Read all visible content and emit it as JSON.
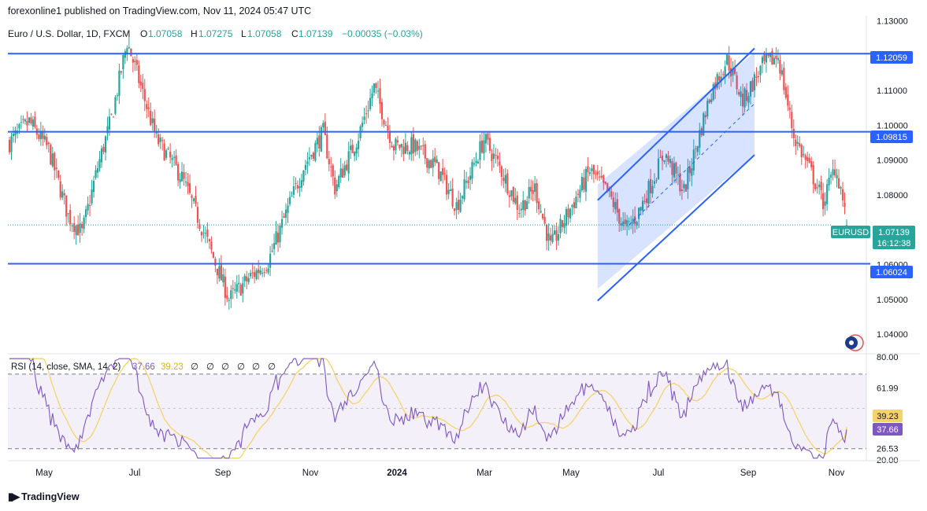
{
  "header": {
    "publisher": "forexonline1 published on TradingView.com, Nov 11, 2024 05:47 UTC"
  },
  "legend": {
    "symbol": "Euro / U.S. Dollar, 1D, FXCM",
    "o_label": "O",
    "o": "1.07058",
    "h_label": "H",
    "h": "1.07275",
    "l_label": "L",
    "l": "1.07058",
    "c_label": "C",
    "c": "1.07139",
    "change": "−0.00035 (−0.03%)"
  },
  "price_badges": {
    "level_high": "1.12059",
    "level_mid": "1.09815",
    "level_low": "1.06024",
    "symbol": "EURUSD",
    "last": "1.07139",
    "countdown": "16:12:38"
  },
  "rsi_legend": {
    "text": "RSI (14, close, SMA, 14, 2)",
    "rsi": "37.66",
    "sma": "39.23",
    "extras": [
      "∅",
      "∅",
      "∅",
      "∅",
      "∅",
      "∅"
    ]
  },
  "footer": {
    "brand": "TradingView"
  },
  "colors": {
    "up": "#26a69a",
    "down": "#ef5350",
    "line": "#2962ff",
    "rsi": "#7e57c2",
    "sma": "#f5d36a"
  },
  "chart_data": {
    "type": "candlestick",
    "symbol": "EURUSD",
    "timeframe": "1D",
    "ylim": [
      1.0355,
      1.1315
    ],
    "y_ticks": [
      "1.13000",
      "1.12000",
      "1.11000",
      "1.10000",
      "1.09000",
      "1.08000",
      "1.07000",
      "1.06000",
      "1.05000",
      "1.04000"
    ],
    "x_labels": [
      "May",
      "Jul",
      "Sep",
      "Nov",
      "2024",
      "Mar",
      "May",
      "Jul",
      "Sep",
      "Nov"
    ],
    "horizontal_levels": [
      1.12059,
      1.09815,
      1.06024
    ],
    "last_price": 1.07139,
    "ohlc_keypoints": [
      {
        "i": 0,
        "c": 1.095
      },
      {
        "i": 10,
        "c": 1.101
      },
      {
        "i": 20,
        "c": 1.093
      },
      {
        "i": 30,
        "c": 1.074
      },
      {
        "i": 37,
        "c": 1.069
      },
      {
        "i": 45,
        "c": 1.088
      },
      {
        "i": 52,
        "c": 1.102
      },
      {
        "i": 60,
        "c": 1.124
      },
      {
        "i": 66,
        "c": 1.113
      },
      {
        "i": 75,
        "c": 1.096
      },
      {
        "i": 88,
        "c": 1.085
      },
      {
        "i": 100,
        "c": 1.068
      },
      {
        "i": 112,
        "c": 1.05
      },
      {
        "i": 122,
        "c": 1.056
      },
      {
        "i": 132,
        "c": 1.061
      },
      {
        "i": 140,
        "c": 1.073
      },
      {
        "i": 150,
        "c": 1.088
      },
      {
        "i": 160,
        "c": 1.098
      },
      {
        "i": 166,
        "c": 1.082
      },
      {
        "i": 178,
        "c": 1.097
      },
      {
        "i": 186,
        "c": 1.111
      },
      {
        "i": 196,
        "c": 1.094
      },
      {
        "i": 206,
        "c": 1.094
      },
      {
        "i": 218,
        "c": 1.088
      },
      {
        "i": 228,
        "c": 1.077
      },
      {
        "i": 235,
        "c": 1.086
      },
      {
        "i": 242,
        "c": 1.096
      },
      {
        "i": 250,
        "c": 1.088
      },
      {
        "i": 260,
        "c": 1.076
      },
      {
        "i": 268,
        "c": 1.082
      },
      {
        "i": 276,
        "c": 1.065
      },
      {
        "i": 286,
        "c": 1.076
      },
      {
        "i": 296,
        "c": 1.087
      },
      {
        "i": 306,
        "c": 1.08
      },
      {
        "i": 314,
        "c": 1.07
      },
      {
        "i": 320,
        "c": 1.074
      },
      {
        "i": 334,
        "c": 1.092
      },
      {
        "i": 344,
        "c": 1.081
      },
      {
        "i": 358,
        "c": 1.11
      },
      {
        "i": 366,
        "c": 1.119
      },
      {
        "i": 374,
        "c": 1.107
      },
      {
        "i": 384,
        "c": 1.117
      },
      {
        "i": 392,
        "c": 1.12
      },
      {
        "i": 400,
        "c": 1.097
      },
      {
        "i": 410,
        "c": 1.085
      },
      {
        "i": 415,
        "c": 1.078
      },
      {
        "i": 421,
        "c": 1.088
      },
      {
        "i": 424,
        "c": 1.082
      },
      {
        "i": 427,
        "c": 1.071
      }
    ],
    "channel": {
      "upper": [
        [
          1.083,
          300
        ],
        [
          1.121,
          380
        ]
      ],
      "lower": [
        [
          1.053,
          300
        ],
        [
          1.0915,
          380
        ]
      ]
    },
    "rsi": {
      "title": "RSI (14, close, SMA, 14, 2)",
      "ylim": [
        20,
        80
      ],
      "y_ticks": [
        "80.00",
        "61.99",
        "26.53",
        "20.00"
      ],
      "band": [
        26.53,
        70
      ],
      "value": 37.66,
      "sma_value": 39.23
    }
  }
}
